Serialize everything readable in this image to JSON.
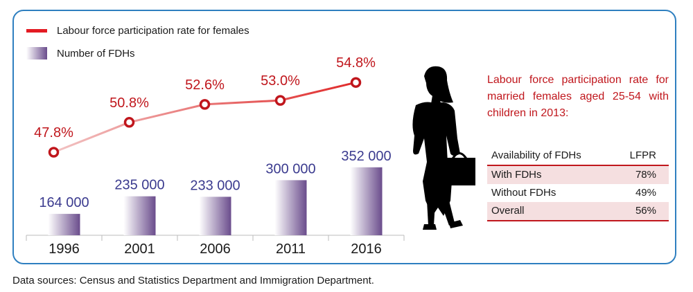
{
  "chart_data": {
    "type": "bar",
    "categories": [
      "1996",
      "2001",
      "2006",
      "2011",
      "2016"
    ],
    "series": [
      {
        "name": "Number of FDHs",
        "kind": "bar",
        "values": [
          164000,
          235000,
          233000,
          300000,
          352000
        ],
        "labels": [
          "164 000",
          "235 000",
          "233 000",
          "300 000",
          "352 000"
        ],
        "color": "#5a3f7e"
      },
      {
        "name": "Labour force participation rate for females",
        "kind": "line",
        "values": [
          47.8,
          50.8,
          52.6,
          53.0,
          54.8
        ],
        "labels": [
          "47.8%",
          "50.8%",
          "52.6%",
          "53.0%",
          "54.8%"
        ],
        "color": "#c0161c"
      }
    ],
    "legend": [
      "Labour force participation rate for females",
      "Number of FDHs"
    ],
    "legend_position": "top-left",
    "grid": false
  },
  "colors": {
    "accent_red": "#c0161c",
    "bar_purple": "#5a3f7e",
    "frame_blue": "#2e7fc0"
  },
  "icon": "woman-silhouette-with-briefcase",
  "note": "Labour force participation rate for married females aged 25-54 with children in 2013:",
  "table": {
    "headers": [
      "Availability of FDHs",
      "LFPR"
    ],
    "rows": [
      {
        "label": "With FDHs",
        "value": "78%"
      },
      {
        "label": "Without FDHs",
        "value": "49%"
      },
      {
        "label": "Overall",
        "value": "56%"
      }
    ]
  },
  "source": "Data sources: Census and Statistics Department and Immigration Department."
}
